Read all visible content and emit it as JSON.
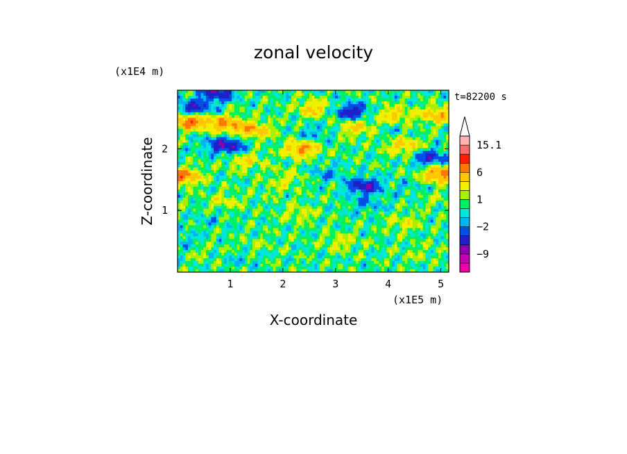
{
  "chart_data": {
    "type": "heatmap",
    "title": "zonal velocity",
    "xlabel": "X-coordinate",
    "ylabel": "Z-coordinate",
    "x_unit": "(x1E5 m)",
    "y_unit": "(x1E4 m)",
    "time_label": "t=82200 s",
    "xlim": [
      0,
      5.15
    ],
    "ylim": [
      0,
      2.95
    ],
    "x_ticks": [
      1,
      2,
      3,
      4,
      5
    ],
    "y_ticks": [
      1,
      2
    ],
    "colorbar": {
      "levels": [
        -15,
        -12,
        -9,
        -6,
        -4,
        -2,
        -1,
        0,
        1,
        2,
        4,
        6,
        9,
        12,
        15.1
      ],
      "colors": [
        "#ee00a8",
        "#c800b4",
        "#8c00b0",
        "#2020c8",
        "#0050e6",
        "#00b4f0",
        "#00e6dc",
        "#00f064",
        "#a8f000",
        "#f0f000",
        "#ffc800",
        "#ff7800",
        "#ff1e00",
        "#ff6a6a",
        "#ffb4b4"
      ],
      "labels": [
        "15.1",
        "6",
        "1",
        "-2",
        "-9"
      ],
      "extend_top": true
    },
    "features": [
      {
        "x": 0.25,
        "z": 2.45,
        "v": 8
      },
      {
        "x": 0.9,
        "z": 2.4,
        "v": 6
      },
      {
        "x": 1.45,
        "z": 2.3,
        "v": 5
      },
      {
        "x": 2.35,
        "z": 2.0,
        "v": 6
      },
      {
        "x": 2.6,
        "z": 2.65,
        "v": 4
      },
      {
        "x": 3.4,
        "z": 2.35,
        "v": 4
      },
      {
        "x": 4.1,
        "z": 2.55,
        "v": 4
      },
      {
        "x": 4.3,
        "z": 2.05,
        "v": 4
      },
      {
        "x": 4.95,
        "z": 2.55,
        "v": 5
      },
      {
        "x": 5.0,
        "z": 1.6,
        "v": 7
      },
      {
        "x": 0.1,
        "z": 1.55,
        "v": 7
      },
      {
        "x": 1.3,
        "z": 1.8,
        "v": 3
      },
      {
        "x": 2.1,
        "z": 1.55,
        "v": 2
      },
      {
        "x": 2.8,
        "z": 1.6,
        "v": -2
      },
      {
        "x": 0.3,
        "z": 2.65,
        "v": -6
      },
      {
        "x": 0.75,
        "z": 2.9,
        "v": -6
      },
      {
        "x": 0.95,
        "z": 2.05,
        "v": -6
      },
      {
        "x": 3.3,
        "z": 2.6,
        "v": -6
      },
      {
        "x": 3.55,
        "z": 1.4,
        "v": -6
      },
      {
        "x": 4.8,
        "z": 1.85,
        "v": -5
      },
      {
        "x": 2.6,
        "z": 2.25,
        "v": -2
      },
      {
        "x": 4.05,
        "z": 2.3,
        "v": -1
      },
      {
        "x": 0.6,
        "z": 2.1,
        "v": -1
      },
      {
        "x": 3.6,
        "z": 1.1,
        "v": -2
      },
      {
        "x": 0.9,
        "z": 1.15,
        "v": 2
      },
      {
        "x": 2.3,
        "z": 0.95,
        "v": 2
      },
      {
        "x": 4.3,
        "z": 0.8,
        "v": 2
      },
      {
        "x": 4.9,
        "z": 1.2,
        "v": 1
      },
      {
        "x": 1.5,
        "z": 0.45,
        "v": 1
      },
      {
        "x": 3.1,
        "z": 0.5,
        "v": 2
      },
      {
        "x": 0.4,
        "z": 0.35,
        "v": 1
      },
      {
        "x": 4.6,
        "z": 0.3,
        "v": 1
      },
      {
        "x": 1.9,
        "z": 1.35,
        "v": 1
      },
      {
        "x": 0.6,
        "z": 0.85,
        "v": -1
      },
      {
        "x": 3.0,
        "z": 0.95,
        "v": 0
      },
      {
        "x": 1.2,
        "z": 0.2,
        "v": -1
      },
      {
        "x": 2.7,
        "z": 0.2,
        "v": 0
      },
      {
        "x": 0.1,
        "z": 0.5,
        "v": -2
      },
      {
        "x": 3.9,
        "z": 0.35,
        "v": 0
      },
      {
        "x": 4.4,
        "z": 1.35,
        "v": -1
      }
    ]
  }
}
